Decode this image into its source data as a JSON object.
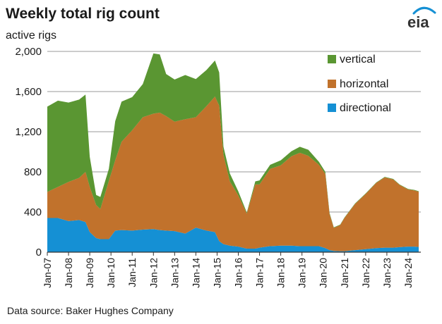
{
  "header": {
    "title": "Weekly total rig count",
    "ylabel": "active rigs",
    "logo_text": "eia"
  },
  "footer": {
    "source": "Data source: Baker Hughes Company"
  },
  "colors": {
    "vertical": "#5a9632",
    "horizontal": "#c1722c",
    "directional": "#1590d4",
    "grid": "#9a9a9a"
  },
  "chart_data": {
    "type": "area",
    "stacked": true,
    "title": "Weekly total rig count",
    "ylabel": "active rigs",
    "xlabel": "",
    "ylim": [
      0,
      2000
    ],
    "yticks": [
      0,
      400,
      800,
      1200,
      1600,
      2000
    ],
    "ytick_labels": [
      "0",
      "400",
      "800",
      "1,200",
      "1,600",
      "2,000"
    ],
    "xtick_labels": [
      "Jan-07",
      "Jan-08",
      "Jan-09",
      "Jan-10",
      "Jan-11",
      "Jan-12",
      "Jan-13",
      "Jan-14",
      "Jan-15",
      "Jan-16",
      "Jan-17",
      "Jan-18",
      "Jan-19",
      "Jan-20",
      "Jan-21",
      "Jan-22",
      "Jan-23",
      "Jan-24"
    ],
    "legend_position": "top-right",
    "grid": true,
    "x": [
      2007.0,
      2007.5,
      2008.0,
      2008.5,
      2008.8,
      2009.0,
      2009.3,
      2009.5,
      2009.9,
      2010.2,
      2010.5,
      2011.0,
      2011.5,
      2012.0,
      2012.3,
      2012.6,
      2013.0,
      2013.5,
      2014.0,
      2014.5,
      2014.9,
      2015.1,
      2015.3,
      2015.6,
      2016.0,
      2016.4,
      2016.8,
      2017.0,
      2017.5,
      2018.0,
      2018.5,
      2018.9,
      2019.3,
      2019.8,
      2020.1,
      2020.3,
      2020.5,
      2020.8,
      2021.0,
      2021.5,
      2022.0,
      2022.5,
      2022.9,
      2023.3,
      2023.6,
      2024.0,
      2024.3,
      2024.5
    ],
    "series": [
      {
        "name": "directional",
        "values": [
          340,
          340,
          310,
          320,
          300,
          200,
          140,
          130,
          130,
          215,
          220,
          215,
          225,
          230,
          220,
          215,
          210,
          185,
          245,
          215,
          200,
          110,
          80,
          65,
          55,
          35,
          35,
          45,
          60,
          65,
          65,
          60,
          60,
          60,
          40,
          20,
          12,
          10,
          10,
          20,
          30,
          40,
          45,
          45,
          50,
          55,
          55,
          52
        ]
      },
      {
        "name": "horizontal",
        "values": [
          260,
          310,
          390,
          420,
          500,
          450,
          330,
          300,
          580,
          700,
          880,
          1000,
          1120,
          1150,
          1170,
          1140,
          1090,
          1140,
          1100,
          1240,
          1350,
          1350,
          890,
          640,
          510,
          350,
          640,
          630,
          770,
          800,
          890,
          930,
          900,
          810,
          740,
          360,
          230,
          260,
          330,
          460,
          550,
          650,
          700,
          680,
          620,
          570,
          560,
          550
        ]
      },
      {
        "name": "vertical",
        "values": [
          850,
          860,
          790,
          780,
          770,
          300,
          100,
          120,
          120,
          390,
          400,
          330,
          330,
          600,
          580,
          420,
          420,
          440,
          380,
          360,
          360,
          330,
          80,
          80,
          40,
          10,
          30,
          40,
          40,
          50,
          50,
          60,
          60,
          30,
          20,
          10,
          5,
          5,
          5,
          5,
          5,
          5,
          5,
          5,
          5,
          5,
          5,
          5
        ]
      }
    ]
  }
}
